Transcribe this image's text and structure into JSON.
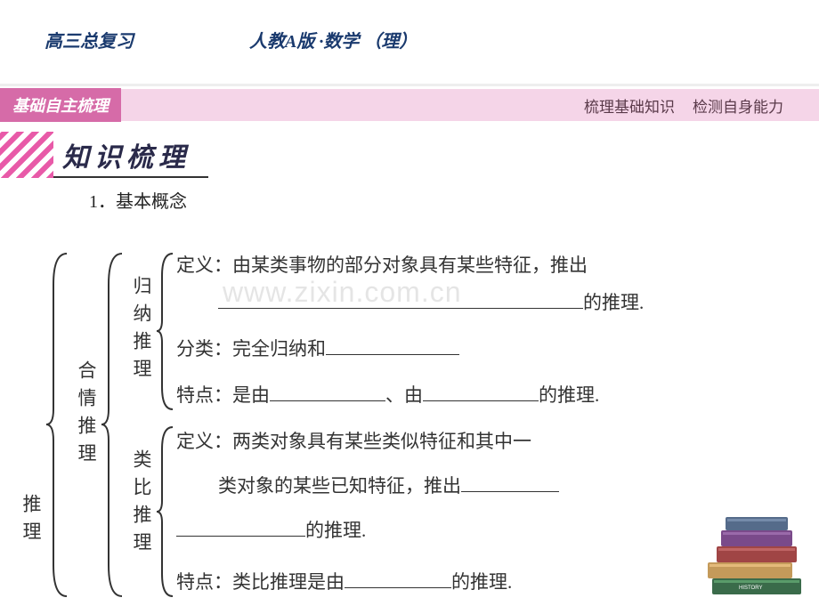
{
  "header": {
    "left": "高三总复习",
    "right": "人教A版 ·数学 （理）"
  },
  "section_bar": {
    "label": "基础自主梳理",
    "right1": "梳理基础知识",
    "right2": "检测自身能力"
  },
  "title": "知识梳理",
  "subtitle": "1．基本概念",
  "watermark": "www.zixin.com.cn",
  "tree": {
    "root": "推理",
    "branch1": {
      "label": "合情推理",
      "sub1": {
        "label": "归纳推理",
        "line1a": "定义：由某类事物的部分对象具有某些特征，推出",
        "line1b_suffix": "的推理.",
        "line2_prefix": "分类：完全归纳和",
        "line3_prefix": "特点：是由",
        "line3_mid": "、由",
        "line3_suffix": "的推理."
      },
      "sub2": {
        "label": "类比推理",
        "line1": "定义：两类对象具有某些类似特征和其中一",
        "line2_prefix": "类对象的某些已知特征，推出",
        "line3_suffix": "的推理.",
        "line4_prefix": "特点：类比推理是由",
        "line4_suffix": "的推理."
      }
    }
  },
  "blanks": {
    "w_long": 410,
    "w_med": 150,
    "w_short": 110,
    "w_short2": 130,
    "w_mid": 120,
    "w_mid2": 145
  },
  "colors": {
    "header_text": "#1a3a6e",
    "bar_bg": "#d66ba8",
    "bar_light": "#f5d5e8",
    "stripe": "#e85aa8",
    "watermark": "rgba(180,180,180,0.35)"
  }
}
